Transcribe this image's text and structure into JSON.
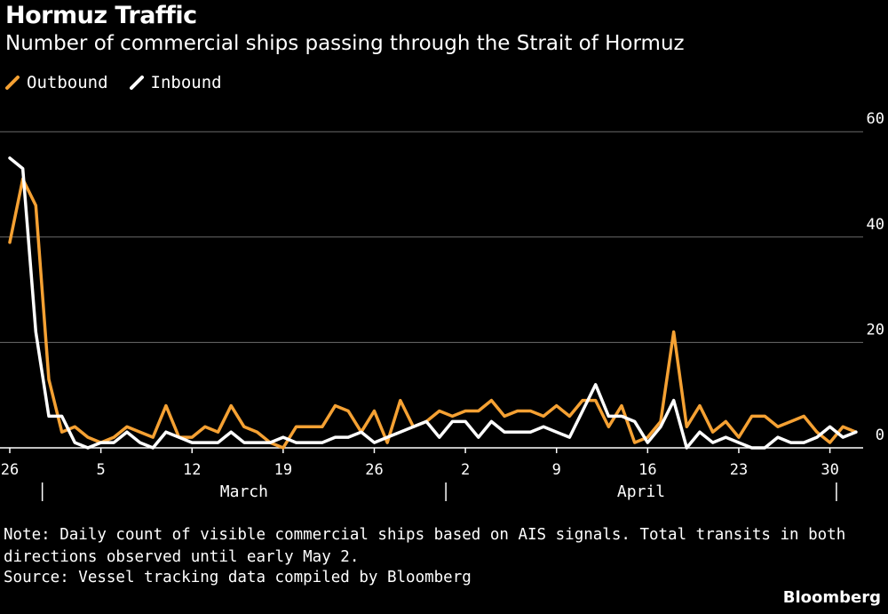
{
  "title": "Hormuz Traffic",
  "subtitle": "Number of commercial ships passing through the Strait of Hormuz",
  "legend": [
    {
      "label": "Outbound",
      "color": "#f5a133"
    },
    {
      "label": "Inbound",
      "color": "#ffffff"
    }
  ],
  "note": "Note: Daily count of visible commercial ships based on AIS signals. Total transits in both directions observed until early May 2.",
  "source": "Source: Vessel tracking data compiled by Bloomberg",
  "brand": "Bloomberg",
  "chart_data": {
    "type": "line",
    "title": "Hormuz Traffic",
    "subtitle": "Number of commercial ships passing through the Strait of Hormuz",
    "x_start": "2026-02-26",
    "x_ticks": [
      {
        "date": "2026-02-26",
        "label": "26"
      },
      {
        "date": "2026-03-05",
        "label": "5"
      },
      {
        "date": "2026-03-12",
        "label": "12"
      },
      {
        "date": "2026-03-19",
        "label": "19"
      },
      {
        "date": "2026-03-26",
        "label": "26"
      },
      {
        "date": "2026-04-02",
        "label": "2"
      },
      {
        "date": "2026-04-09",
        "label": "9"
      },
      {
        "date": "2026-04-16",
        "label": "16"
      },
      {
        "date": "2026-04-23",
        "label": "23"
      },
      {
        "date": "2026-04-30",
        "label": "30"
      }
    ],
    "month_labels": [
      {
        "label": "March",
        "start": "2026-03-01",
        "end": "2026-03-31"
      },
      {
        "label": "April",
        "start": "2026-04-01",
        "end": "2026-04-30"
      }
    ],
    "month_separators": [
      "2026-03-01",
      "2026-04-01",
      "2026-05-01"
    ],
    "ylim": [
      0,
      60
    ],
    "y_ticks": [
      0,
      20,
      40,
      60
    ],
    "grid": true,
    "legend_position": "top-left",
    "series": [
      {
        "name": "Outbound",
        "color": "#f5a133",
        "values": [
          39,
          51,
          46,
          13,
          3,
          4,
          2,
          1,
          2,
          4,
          3,
          2,
          8,
          2,
          2,
          4,
          3,
          8,
          4,
          3,
          1,
          0,
          4,
          4,
          4,
          8,
          7,
          3,
          7,
          1,
          9,
          4,
          5,
          7,
          6,
          7,
          7,
          9,
          6,
          7,
          7,
          6,
          8,
          6,
          9,
          9,
          4,
          8,
          1,
          2,
          5,
          22,
          4,
          8,
          3,
          5,
          2,
          6,
          6,
          4,
          5,
          6,
          3,
          1,
          4,
          3
        ],
        "value_precision": 1
      },
      {
        "name": "Inbound",
        "color": "#ffffff",
        "values": [
          55,
          53,
          22,
          6,
          6,
          1,
          0,
          1,
          1,
          3,
          1,
          0,
          3,
          2,
          1,
          1,
          1,
          3,
          1,
          1,
          1,
          2,
          1,
          1,
          1,
          2,
          2,
          3,
          1,
          2,
          3,
          4,
          5,
          2,
          5,
          5,
          2,
          5,
          3,
          3,
          3,
          4,
          3,
          2,
          7,
          12,
          6,
          6,
          5,
          1,
          4,
          9,
          0,
          3,
          1,
          2,
          1,
          0,
          0,
          2,
          1,
          1,
          2,
          4,
          2,
          3
        ],
        "value_precision": 1
      }
    ]
  }
}
